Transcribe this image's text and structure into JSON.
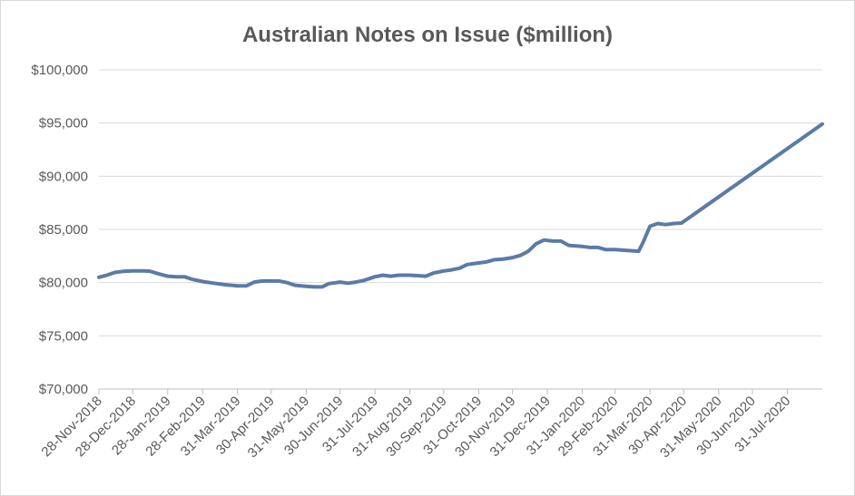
{
  "chart_data": {
    "type": "line",
    "title": "Australian Notes on Issue ($million)",
    "xlabel": "",
    "ylabel": "",
    "ylim": [
      70000,
      100000
    ],
    "y_ticks": [
      70000,
      75000,
      80000,
      85000,
      90000,
      95000,
      100000
    ],
    "y_tick_labels": [
      "$70,000",
      "$75,000",
      "$80,000",
      "$85,000",
      "$90,000",
      "$95,000",
      "$100,000"
    ],
    "x_start": "2018-11-28",
    "x_end": "2020-08-31",
    "x_tick_dates": [
      "2018-11-28",
      "2018-12-28",
      "2019-01-28",
      "2019-02-28",
      "2019-03-31",
      "2019-04-30",
      "2019-05-31",
      "2019-06-30",
      "2019-07-31",
      "2019-08-31",
      "2019-09-30",
      "2019-10-31",
      "2019-11-30",
      "2019-12-31",
      "2020-01-31",
      "2020-02-29",
      "2020-03-31",
      "2020-04-30",
      "2020-05-31",
      "2020-06-30",
      "2020-07-31"
    ],
    "x_tick_labels": [
      "28-Nov-2018",
      "28-Dec-2018",
      "28-Jan-2019",
      "28-Feb-2019",
      "31-Mar-2019",
      "30-Apr-2019",
      "31-May-2019",
      "30-Jun-2019",
      "31-Jul-2019",
      "31-Aug-2019",
      "30-Sep-2019",
      "31-Oct-2019",
      "30-Nov-2019",
      "31-Dec-2019",
      "31-Jan-2020",
      "29-Feb-2020",
      "31-Mar-2020",
      "30-Apr-2020",
      "31-May-2020",
      "30-Jun-2020",
      "31-Jul-2020"
    ],
    "grid": true,
    "legend": "none",
    "series": [
      {
        "color": "#5b7ba6",
        "points": [
          [
            "2018-11-28",
            80500
          ],
          [
            "2018-12-05",
            80700
          ],
          [
            "2018-12-12",
            80950
          ],
          [
            "2018-12-19",
            81050
          ],
          [
            "2018-12-28",
            81100
          ],
          [
            "2019-01-05",
            81100
          ],
          [
            "2019-01-12",
            81080
          ],
          [
            "2019-01-19",
            80850
          ],
          [
            "2019-01-28",
            80600
          ],
          [
            "2019-02-05",
            80550
          ],
          [
            "2019-02-12",
            80550
          ],
          [
            "2019-02-19",
            80300
          ],
          [
            "2019-02-28",
            80100
          ],
          [
            "2019-03-10",
            79950
          ],
          [
            "2019-03-20",
            79800
          ],
          [
            "2019-03-31",
            79700
          ],
          [
            "2019-04-08",
            79700
          ],
          [
            "2019-04-15",
            80050
          ],
          [
            "2019-04-22",
            80150
          ],
          [
            "2019-04-30",
            80150
          ],
          [
            "2019-05-07",
            80150
          ],
          [
            "2019-05-14",
            80000
          ],
          [
            "2019-05-21",
            79750
          ],
          [
            "2019-05-31",
            79650
          ],
          [
            "2019-06-07",
            79600
          ],
          [
            "2019-06-14",
            79600
          ],
          [
            "2019-06-20",
            79900
          ],
          [
            "2019-06-30",
            80050
          ],
          [
            "2019-07-07",
            79950
          ],
          [
            "2019-07-14",
            80050
          ],
          [
            "2019-07-21",
            80200
          ],
          [
            "2019-07-31",
            80550
          ],
          [
            "2019-08-07",
            80700
          ],
          [
            "2019-08-14",
            80600
          ],
          [
            "2019-08-21",
            80700
          ],
          [
            "2019-08-31",
            80700
          ],
          [
            "2019-09-07",
            80650
          ],
          [
            "2019-09-14",
            80600
          ],
          [
            "2019-09-21",
            80900
          ],
          [
            "2019-09-30",
            81100
          ],
          [
            "2019-10-07",
            81200
          ],
          [
            "2019-10-14",
            81350
          ],
          [
            "2019-10-21",
            81700
          ],
          [
            "2019-10-31",
            81850
          ],
          [
            "2019-11-07",
            81950
          ],
          [
            "2019-11-14",
            82150
          ],
          [
            "2019-11-21",
            82200
          ],
          [
            "2019-11-30",
            82350
          ],
          [
            "2019-12-07",
            82550
          ],
          [
            "2019-12-14",
            82950
          ],
          [
            "2019-12-21",
            83650
          ],
          [
            "2019-12-28",
            84000
          ],
          [
            "2020-01-05",
            83900
          ],
          [
            "2020-01-12",
            83900
          ],
          [
            "2020-01-19",
            83500
          ],
          [
            "2020-01-31",
            83400
          ],
          [
            "2020-02-07",
            83300
          ],
          [
            "2020-02-14",
            83300
          ],
          [
            "2020-02-21",
            83100
          ],
          [
            "2020-02-29",
            83100
          ],
          [
            "2020-03-07",
            83050
          ],
          [
            "2020-03-14",
            83000
          ],
          [
            "2020-03-21",
            82950
          ],
          [
            "2020-03-25",
            83800
          ],
          [
            "2020-03-31",
            85300
          ],
          [
            "2020-04-07",
            85550
          ],
          [
            "2020-04-14",
            85450
          ],
          [
            "2020-04-21",
            85550
          ],
          [
            "2020-04-28",
            85600
          ],
          [
            "2020-08-31",
            94900
          ]
        ]
      }
    ]
  }
}
